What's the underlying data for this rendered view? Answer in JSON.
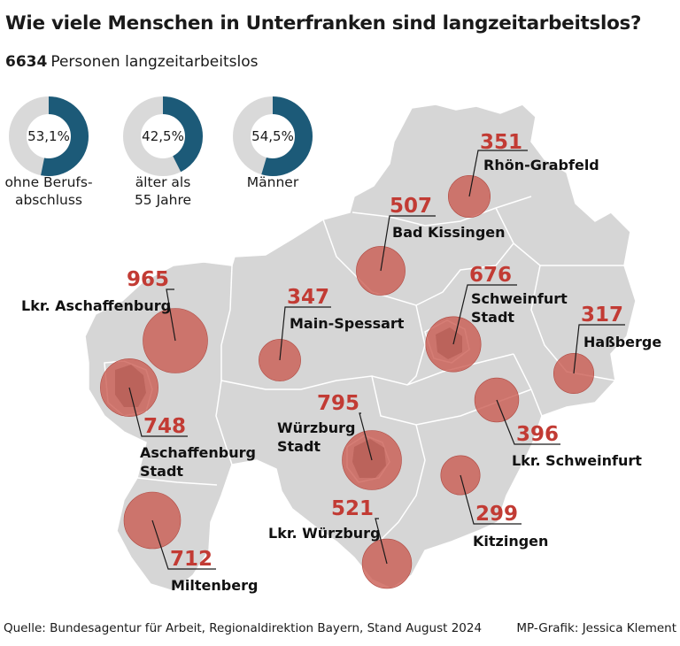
{
  "title": "Wie viele Menschen in Unterfranken sind langzeitarbeitslos?",
  "total": {
    "value": "6634",
    "label": "Personen langzeitarbeitslos"
  },
  "colors": {
    "accent": "#1c5a78",
    "ring_bg": "#d9d9d9",
    "map_fill": "#d6d6d6",
    "bubble": "#c9584e",
    "number": "#c23b34"
  },
  "donuts": [
    {
      "value_text": "53,1%",
      "fraction": 0.531,
      "label_lines": [
        "ohne Berufs-",
        "abschluss"
      ]
    },
    {
      "value_text": "42,5%",
      "fraction": 0.425,
      "label_lines": [
        "älter als",
        "55 Jahre"
      ]
    },
    {
      "value_text": "54,5%",
      "fraction": 0.545,
      "label_lines": [
        "Männer"
      ]
    }
  ],
  "regions": [
    {
      "name_lines": [
        "Rhön-Grabfeld"
      ],
      "value": 351
    },
    {
      "name_lines": [
        "Bad Kissingen"
      ],
      "value": 507
    },
    {
      "name_lines": [
        "Lkr. Aschaffenburg"
      ],
      "value": 965
    },
    {
      "name_lines": [
        "Main-Spessart"
      ],
      "value": 347
    },
    {
      "name_lines": [
        "Schweinfurt",
        "Stadt"
      ],
      "value": 676
    },
    {
      "name_lines": [
        "Haßberge"
      ],
      "value": 317
    },
    {
      "name_lines": [
        "Aschaffenburg",
        "Stadt"
      ],
      "value": 748
    },
    {
      "name_lines": [
        "Würzburg",
        "Stadt"
      ],
      "value": 795
    },
    {
      "name_lines": [
        "Lkr. Schweinfurt"
      ],
      "value": 396
    },
    {
      "name_lines": [
        "Lkr. Würzburg"
      ],
      "value": 521
    },
    {
      "name_lines": [
        "Kitzingen"
      ],
      "value": 299
    },
    {
      "name_lines": [
        "Miltenberg"
      ],
      "value": 712
    }
  ],
  "footer": {
    "source": "Quelle: Bundesagentur für Arbeit, Regionaldirektion Bayern, Stand August 2024",
    "credit": "MP-Grafik: Jessica Klement"
  }
}
